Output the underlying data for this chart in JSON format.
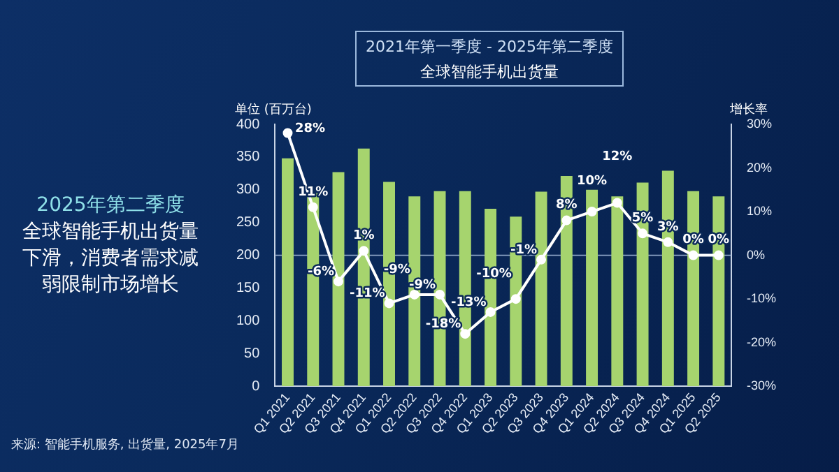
{
  "chart_data": {
    "type": "bar",
    "title": "2021年第一季度 - 2025年第二季度",
    "subtitle": "全球智能手机出货量",
    "ylabel": "单位 (百万台)",
    "y2label": "增长率",
    "annotations": [
      "2025年第二季度",
      "全球智能手机出货量下滑，消费者需求减弱限制市场增长",
      "来源: 智能手机服务, 出货量, 2025年7月"
    ],
    "categories": [
      "Q1 2021",
      "Q2 2021",
      "Q3 2021",
      "Q4 2021",
      "Q1 2022",
      "Q2 2022",
      "Q3 2022",
      "Q4 2022",
      "Q1 2023",
      "Q2 2023",
      "Q3 2023",
      "Q4 2023",
      "Q1 2024",
      "Q2 2024",
      "Q3 2024",
      "Q4 2024",
      "Q1 2025",
      "Q2 2025"
    ],
    "series": [
      {
        "type": "bar",
        "color": "#a6d46e",
        "values": [
          348,
          295,
          327,
          363,
          312,
          290,
          298,
          298,
          271,
          259,
          297,
          321,
          300,
          290,
          311,
          329,
          298,
          290
        ]
      },
      {
        "type": "line",
        "axis": "y2",
        "color": "#ffffff",
        "values": [
          28,
          11,
          -6,
          1,
          -11,
          -9,
          -9,
          -18,
          -13,
          -10,
          -1,
          8,
          10,
          12,
          5,
          3,
          0,
          0
        ],
        "value_labels": [
          "28%",
          "11%",
          "-6%",
          "1%",
          "-11%",
          "-9%",
          "-9%",
          "-18%",
          "-13%",
          "-10%",
          "-1%",
          "8%",
          "10%",
          "12%",
          "5%",
          "3%",
          "0%",
          "0%"
        ]
      }
    ],
    "ylim": [
      0,
      400
    ],
    "yticks": [
      0,
      50,
      100,
      150,
      200,
      250,
      300,
      350,
      400
    ],
    "y2lim": [
      -30,
      30
    ],
    "y2ticks": [
      {
        "value": -30,
        "label": "-30%"
      },
      {
        "value": -20,
        "label": "-20%"
      },
      {
        "value": -10,
        "label": "-10%"
      },
      {
        "value": 0,
        "label": "0%"
      },
      {
        "value": 10,
        "label": "10%"
      },
      {
        "value": 20,
        "label": "20%"
      },
      {
        "value": 30,
        "label": "30%"
      }
    ],
    "ref_lines": [
      {
        "axis": "y2",
        "value": 0,
        "color": "#8fa6c8"
      }
    ],
    "marker": "circle",
    "legend": false,
    "grid": false
  }
}
